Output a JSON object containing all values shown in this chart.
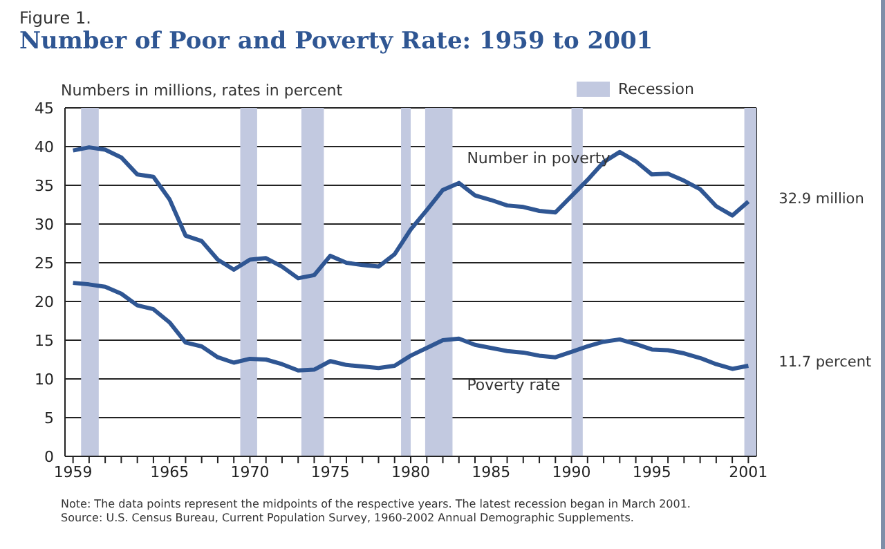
{
  "chart_data": {
    "type": "line",
    "subtitle": "Figure 1.",
    "title": "Number of Poor and Poverty Rate:  1959 to 2001",
    "ylabel": "Numbers in millions, rates in percent",
    "x": [
      1959,
      1960,
      1961,
      1962,
      1963,
      1964,
      1965,
      1966,
      1967,
      1968,
      1969,
      1970,
      1971,
      1972,
      1973,
      1974,
      1975,
      1976,
      1977,
      1978,
      1979,
      1980,
      1981,
      1982,
      1983,
      1984,
      1985,
      1986,
      1987,
      1988,
      1989,
      1990,
      1991,
      1992,
      1993,
      1994,
      1995,
      1996,
      1997,
      1998,
      1999,
      2000,
      2001
    ],
    "series": [
      {
        "name": "Number in poverty",
        "color": "#2f5693",
        "values": [
          39.5,
          39.9,
          39.6,
          38.6,
          36.4,
          36.1,
          33.2,
          28.5,
          27.8,
          25.4,
          24.1,
          25.4,
          25.6,
          24.5,
          23.0,
          23.4,
          25.9,
          25.0,
          24.7,
          24.5,
          26.1,
          29.3,
          31.8,
          34.4,
          35.3,
          33.7,
          33.1,
          32.4,
          32.2,
          31.7,
          31.5,
          33.6,
          35.7,
          38.0,
          39.3,
          38.1,
          36.4,
          36.5,
          35.6,
          34.5,
          32.3,
          31.1,
          32.9
        ]
      },
      {
        "name": "Poverty rate",
        "color": "#2f5693",
        "values": [
          22.4,
          22.2,
          21.9,
          21.0,
          19.5,
          19.0,
          17.3,
          14.7,
          14.2,
          12.8,
          12.1,
          12.6,
          12.5,
          11.9,
          11.1,
          11.2,
          12.3,
          11.8,
          11.6,
          11.4,
          11.7,
          13.0,
          14.0,
          15.0,
          15.2,
          14.4,
          14.0,
          13.6,
          13.4,
          13.0,
          12.8,
          13.5,
          14.2,
          14.8,
          15.1,
          14.5,
          13.8,
          13.7,
          13.3,
          12.7,
          11.9,
          11.3,
          11.7
        ]
      }
    ],
    "xlim": [
      1958.5,
      2001.5
    ],
    "xticks": [
      1959,
      {
        "value": 1960,
        "label": null
      },
      {
        "value": 1961,
        "label": null
      },
      {
        "value": 1962,
        "label": null
      },
      {
        "value": 1963,
        "label": null
      },
      {
        "value": 1964,
        "label": null
      },
      1965,
      {
        "value": 1966,
        "label": null
      },
      {
        "value": 1967,
        "label": null
      },
      {
        "value": 1968,
        "label": null
      },
      {
        "value": 1969,
        "label": null
      },
      1970,
      {
        "value": 1971,
        "label": null
      },
      {
        "value": 1972,
        "label": null
      },
      {
        "value": 1973,
        "label": null
      },
      {
        "value": 1974,
        "label": null
      },
      1975,
      {
        "value": 1976,
        "label": null
      },
      {
        "value": 1977,
        "label": null
      },
      {
        "value": 1978,
        "label": null
      },
      {
        "value": 1979,
        "label": null
      },
      1980,
      {
        "value": 1981,
        "label": null
      },
      {
        "value": 1982,
        "label": null
      },
      {
        "value": 1983,
        "label": null
      },
      {
        "value": 1984,
        "label": null
      },
      1985,
      {
        "value": 1986,
        "label": null
      },
      {
        "value": 1987,
        "label": null
      },
      {
        "value": 1988,
        "label": null
      },
      {
        "value": 1989,
        "label": null
      },
      1990,
      {
        "value": 1991,
        "label": null
      },
      {
        "value": 1992,
        "label": null
      },
      {
        "value": 1993,
        "label": null
      },
      {
        "value": 1994,
        "label": null
      },
      1995,
      {
        "value": 1996,
        "label": null
      },
      {
        "value": 1997,
        "label": null
      },
      {
        "value": 1998,
        "label": null
      },
      {
        "value": 1999,
        "label": null
      },
      {
        "value": 2000,
        "label": null
      },
      2001
    ],
    "ylim": [
      0,
      45
    ],
    "yticks": [
      0,
      5,
      10,
      15,
      20,
      25,
      30,
      35,
      40,
      45
    ],
    "grid": "y",
    "legend": "top right",
    "marker": "none",
    "line_style": "solid",
    "bands": [
      {
        "axis": "x",
        "from": 1959.5,
        "to": 1960.6,
        "label": "Recession",
        "color": "#c2c9e0"
      },
      {
        "axis": "x",
        "from": 1969.4,
        "to": 1970.45,
        "color": "#c2c9e0"
      },
      {
        "axis": "x",
        "from": 1973.2,
        "to": 1974.6,
        "color": "#c2c9e0"
      },
      {
        "axis": "x",
        "from": 1979.4,
        "to": 1980.0,
        "color": "#c2c9e0"
      },
      {
        "axis": "x",
        "from": 1980.9,
        "to": 1982.6,
        "color": "#c2c9e0"
      },
      {
        "axis": "x",
        "from": 1990.0,
        "to": 1990.7,
        "color": "#c2c9e0"
      },
      {
        "axis": "x",
        "from": 2000.75,
        "to": 2001.5,
        "color": "#c2c9e0"
      }
    ],
    "annotations": [
      {
        "text": "32.9 million",
        "x": 2001,
        "y": 32.9
      },
      {
        "text": "11.7 percent",
        "x": 2001,
        "y": 11.7
      },
      "Note:  The data points represent the midpoints of the respective years.  The latest recession began in March 2001.",
      "Source:  U.S. Census Bureau, Current Population Survey, 1960-2002 Annual Demographic Supplements."
    ]
  }
}
